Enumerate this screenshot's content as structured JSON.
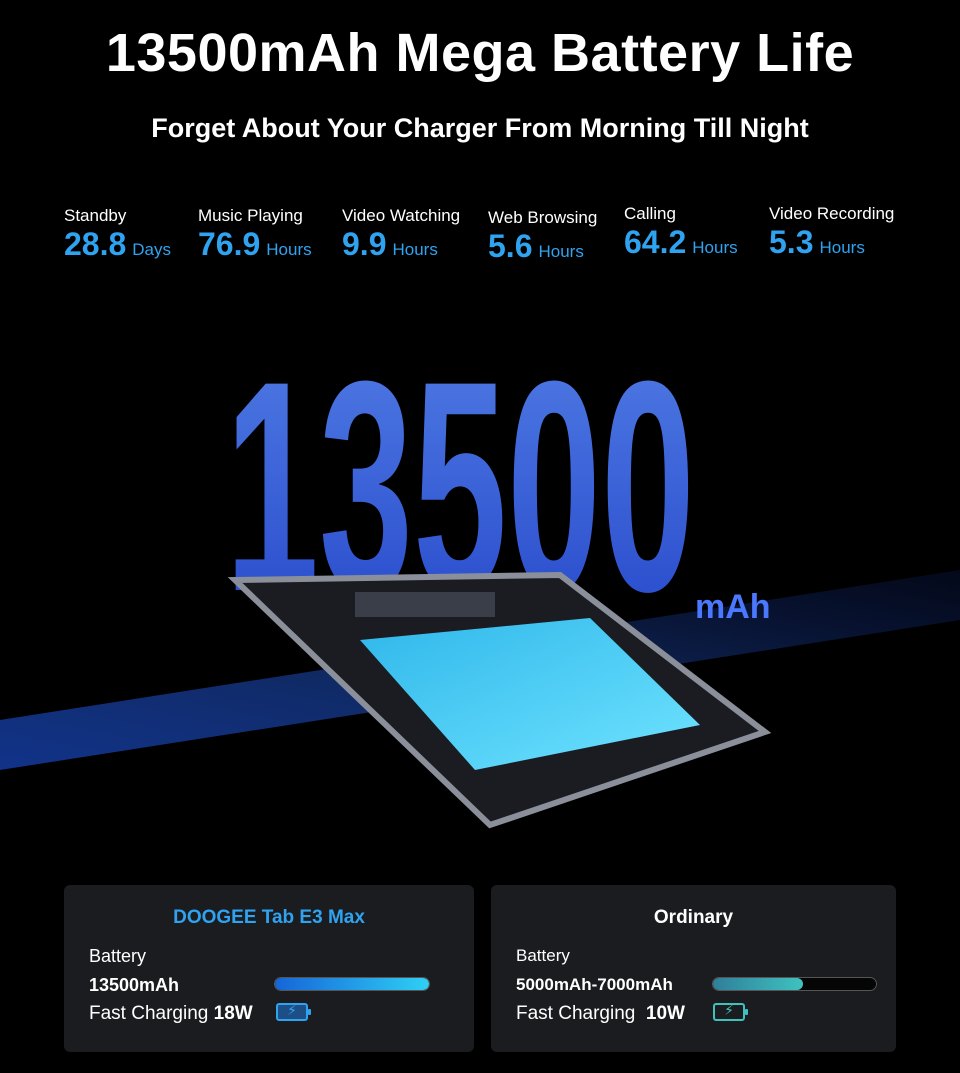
{
  "header": {
    "title": "13500mAh Mega Battery Life",
    "subtitle": "Forget About Your Charger From Morning Till Night"
  },
  "stats": [
    {
      "label": "Standby",
      "value": "28.8",
      "unit": "Days"
    },
    {
      "label": "Music Playing",
      "value": "76.9",
      "unit": "Hours"
    },
    {
      "label": "Video Watching",
      "value": "9.9",
      "unit": "Hours"
    },
    {
      "label": "Web Browsing",
      "value": "5.6",
      "unit": "Hours"
    },
    {
      "label": "Calling",
      "value": "64.2",
      "unit": "Hours"
    },
    {
      "label": "Video Recording",
      "value": "5.3",
      "unit": "Hours"
    }
  ],
  "hero": {
    "big_number": "13500",
    "unit": "mAh"
  },
  "comparison": [
    {
      "name": "DOOGEE Tab E3 Max",
      "battery_label": "Battery",
      "capacity": "13500mAh",
      "bar_fill": 1.0,
      "charging_label": "Fast Charging",
      "charging_value": "18W",
      "color": "#2fa3f0",
      "bar_colors": [
        "#1565d8",
        "#2fd0f5"
      ]
    },
    {
      "name": "Ordinary",
      "battery_label": "Battery",
      "capacity": "5000mAh-7000mAh",
      "bar_fill": 0.55,
      "charging_label": "Fast Charging",
      "charging_value": "10W",
      "color": "#ffffff",
      "bar_colors": [
        "#2f7f9a",
        "#3fc2bf"
      ]
    }
  ],
  "icons": {
    "battery": "battery-charging-icon"
  }
}
